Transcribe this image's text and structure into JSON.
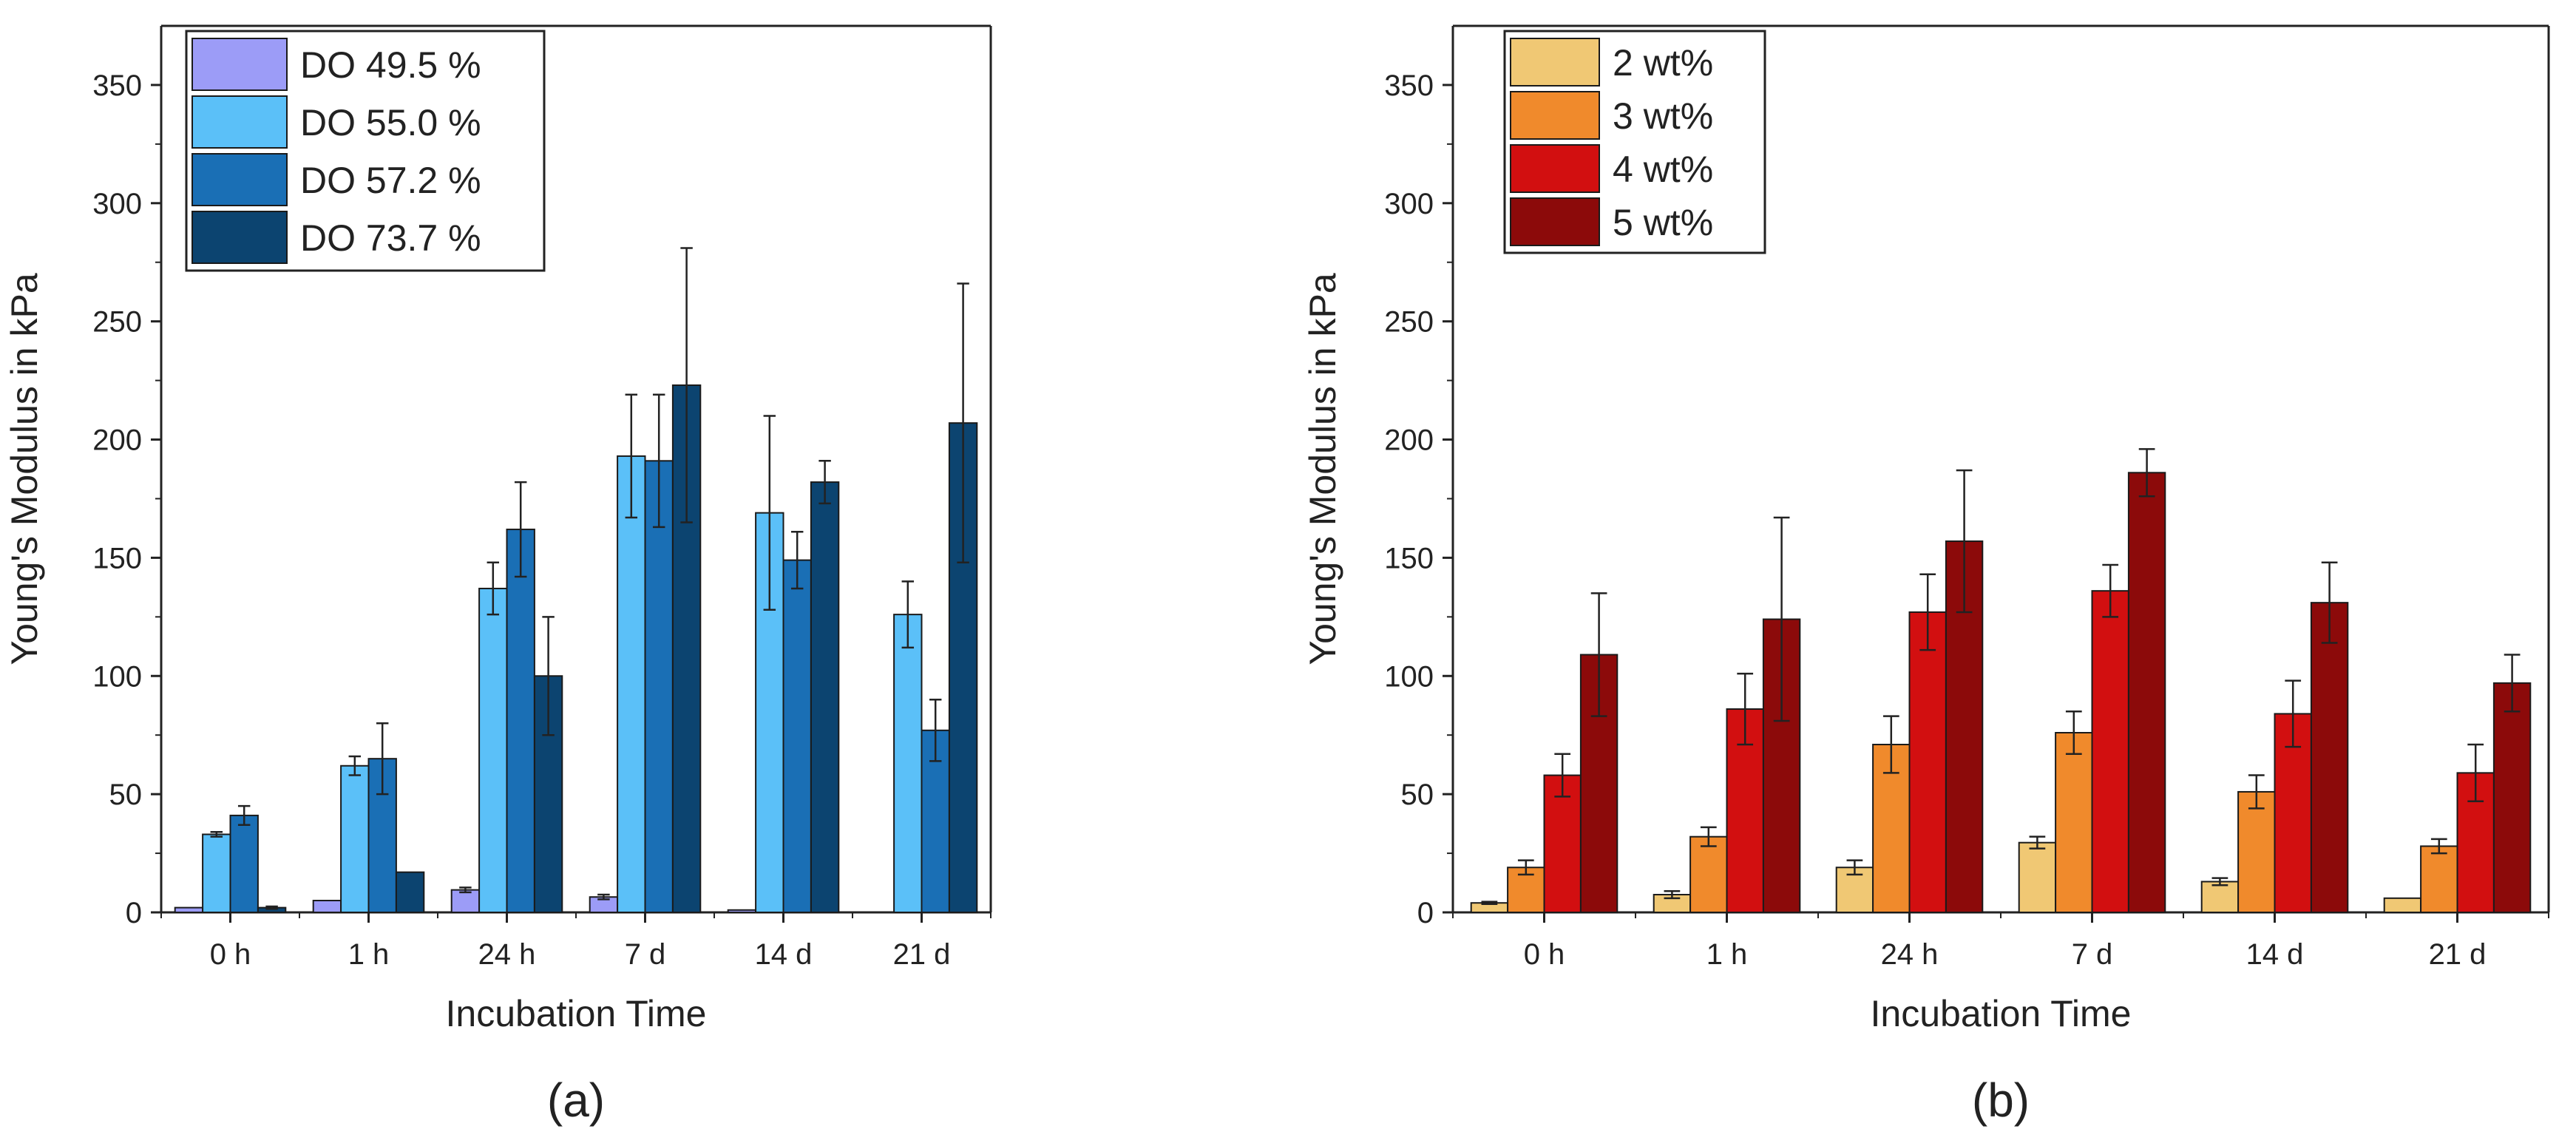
{
  "chart_data": [
    {
      "type": "bar",
      "panel_label": "(a)",
      "xlabel": "Incubation Time",
      "ylabel": "Young's Modulus in kPa",
      "ylim": [
        0,
        375
      ],
      "yticks": [
        0,
        50,
        100,
        150,
        200,
        250,
        300,
        350
      ],
      "categories": [
        "0 h",
        "1 h",
        "24 h",
        "7 d",
        "14 d",
        "21 d"
      ],
      "legend_position": "top-left",
      "series": [
        {
          "name": "DO 49.5 %",
          "color": "#9C9CF7",
          "values": [
            2,
            5,
            9.5,
            6.5,
            1,
            0
          ],
          "errors": [
            0,
            0,
            1,
            1,
            0,
            0
          ]
        },
        {
          "name": "DO 55.0 %",
          "color": "#5BC0F8",
          "values": [
            33,
            62,
            137,
            193,
            169,
            126
          ],
          "errors": [
            1,
            4,
            11,
            26,
            41,
            14
          ]
        },
        {
          "name": "DO 57.2 %",
          "color": "#1A6FB5",
          "values": [
            41,
            65,
            162,
            191,
            149,
            77
          ],
          "errors": [
            4,
            15,
            20,
            28,
            12,
            13
          ]
        },
        {
          "name": "DO 73.7 %",
          "color": "#0C4470",
          "values": [
            2,
            17,
            100,
            223,
            182,
            207
          ],
          "errors": [
            0.5,
            0,
            25,
            58,
            9,
            59
          ]
        }
      ]
    },
    {
      "type": "bar",
      "panel_label": "(b)",
      "xlabel": "Incubation Time",
      "ylabel": "Young's Modulus in kPa",
      "ylim": [
        0,
        375
      ],
      "yticks": [
        0,
        50,
        100,
        150,
        200,
        250,
        300,
        350
      ],
      "categories": [
        "0 h",
        "1 h",
        "24 h",
        "7 d",
        "14 d",
        "21 d"
      ],
      "legend_position": "top-left",
      "series": [
        {
          "name": "2 wt%",
          "color": "#F0C874",
          "values": [
            4,
            7.5,
            19,
            29.5,
            13,
            6
          ],
          "errors": [
            0.5,
            1.5,
            3,
            2.5,
            1.5,
            0
          ]
        },
        {
          "name": "3 wt%",
          "color": "#F08A2C",
          "values": [
            19,
            32,
            71,
            76,
            51,
            28
          ],
          "errors": [
            3,
            4,
            12,
            9,
            7,
            3
          ]
        },
        {
          "name": "4 wt%",
          "color": "#D20F10",
          "values": [
            58,
            86,
            127,
            136,
            84,
            59
          ],
          "errors": [
            9,
            15,
            16,
            11,
            14,
            12
          ]
        },
        {
          "name": "5 wt%",
          "color": "#8C0A0A",
          "values": [
            109,
            124,
            157,
            186,
            131,
            97
          ],
          "errors": [
            26,
            43,
            30,
            10,
            17,
            12
          ]
        }
      ]
    }
  ]
}
